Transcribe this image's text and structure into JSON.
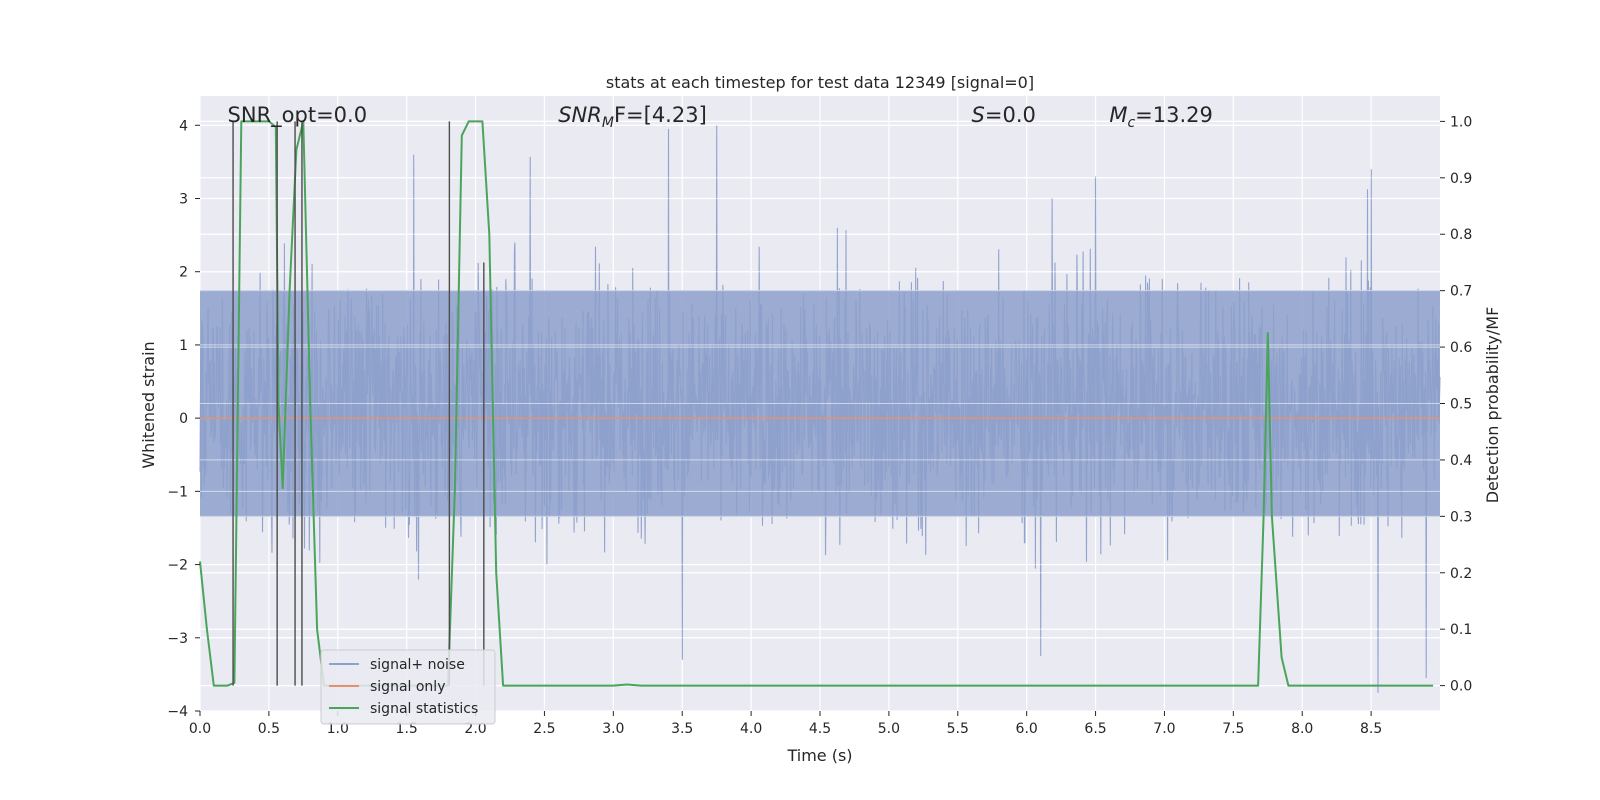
{
  "chart_data": {
    "type": "line",
    "title": "stats at each timestep for test data 12349 [signal=0]",
    "xlabel": "Time (s)",
    "ylabel_left": "Whitened strain",
    "ylabel_right": "Detection probability/MF",
    "xlim": [
      0.0,
      9.0
    ],
    "ylim_left": [
      -4.0,
      4.4
    ],
    "ylim_right": [
      -0.045,
      1.045
    ],
    "grid": true,
    "legend_position": "lower-left",
    "x_ticks": [
      "0.0",
      "0.5",
      "1.0",
      "1.5",
      "2.0",
      "2.5",
      "3.0",
      "3.5",
      "4.0",
      "4.5",
      "5.0",
      "5.5",
      "6.0",
      "6.5",
      "7.0",
      "7.5",
      "8.0",
      "8.5"
    ],
    "y_ticks_left": [
      "−4",
      "−3",
      "−2",
      "−1",
      "0",
      "1",
      "2",
      "3",
      "4"
    ],
    "y_ticks_right": [
      "0.0",
      "0.1",
      "0.2",
      "0.3",
      "0.4",
      "0.5",
      "0.6",
      "0.7",
      "0.8",
      "0.9",
      "1.0"
    ],
    "annotations": [
      {
        "x": 0.2,
        "plain": "SNR_opt=0.0"
      },
      {
        "x": 2.6,
        "main": "SNR",
        "sub": "M",
        "rest": "F=[4.23]"
      },
      {
        "x": 5.6,
        "main": "S",
        "rest": "=0.0"
      },
      {
        "x": 6.6,
        "main": "M",
        "sub": "c",
        "rest": "=13.29"
      }
    ],
    "series": [
      {
        "name": "signal+ noise",
        "axis": "left",
        "color": "#8da0cb",
        "style": "dense-noise",
        "x_range": [
          0.0,
          9.0
        ],
        "typical_range": [
          -1.35,
          1.75
        ],
        "spike_extremes": [
          {
            "x": 1.55,
            "y": 3.6
          },
          {
            "x": 3.4,
            "y": 3.95
          },
          {
            "x": 3.75,
            "y": 4.0
          },
          {
            "x": 6.5,
            "y": 3.3
          },
          {
            "x": 8.5,
            "y": 3.4
          },
          {
            "x": 3.5,
            "y": -3.3
          },
          {
            "x": 6.1,
            "y": -3.25
          },
          {
            "x": 8.55,
            "y": -3.75
          },
          {
            "x": 8.9,
            "y": -3.55
          }
        ]
      },
      {
        "name": "signal only",
        "axis": "left",
        "color": "#e5906e",
        "x": [
          0.0,
          9.0
        ],
        "y": [
          0.0,
          0.0
        ]
      },
      {
        "name": "signal statistics",
        "axis": "right",
        "color": "#4aa55b",
        "x": [
          0.0,
          0.05,
          0.1,
          0.2,
          0.25,
          0.3,
          0.35,
          0.5,
          0.55,
          0.57,
          0.6,
          0.65,
          0.7,
          0.75,
          0.8,
          0.85,
          0.9,
          1.7,
          1.8,
          1.85,
          1.9,
          1.95,
          2.05,
          2.1,
          2.15,
          2.2,
          2.25,
          3.0,
          3.1,
          3.2,
          4.0,
          7.68,
          7.72,
          7.75,
          7.78,
          7.85,
          7.9,
          8.8,
          8.95
        ],
        "y": [
          0.22,
          0.1,
          0.0,
          0.0,
          0.005,
          1.0,
          1.0,
          1.0,
          0.99,
          0.5,
          0.35,
          0.7,
          0.95,
          1.0,
          0.5,
          0.1,
          0.0,
          0.0,
          0.0,
          0.35,
          0.975,
          1.0,
          1.0,
          0.8,
          0.2,
          0.0,
          0.0,
          0.0,
          0.002,
          0.0,
          0.0,
          0.0,
          0.3,
          0.625,
          0.3,
          0.05,
          0.0,
          0.0,
          0.0
        ]
      },
      {
        "name": "",
        "axis": "right",
        "color": "#4d4d4d",
        "style": "vertical-markers",
        "markers": [
          {
            "x": 0.24,
            "y0": 0.0,
            "y1": 1.0
          },
          {
            "x": 0.56,
            "y0": 0.0,
            "y1": 1.0
          },
          {
            "x": 0.69,
            "y0": 0.0,
            "y1": 1.0
          },
          {
            "x": 0.74,
            "y0": 0.0,
            "y1": 1.0
          },
          {
            "x": 1.81,
            "y0": 0.0,
            "y1": 1.0
          },
          {
            "x": 2.06,
            "y0": 0.0,
            "y1": 0.75
          }
        ]
      }
    ]
  }
}
